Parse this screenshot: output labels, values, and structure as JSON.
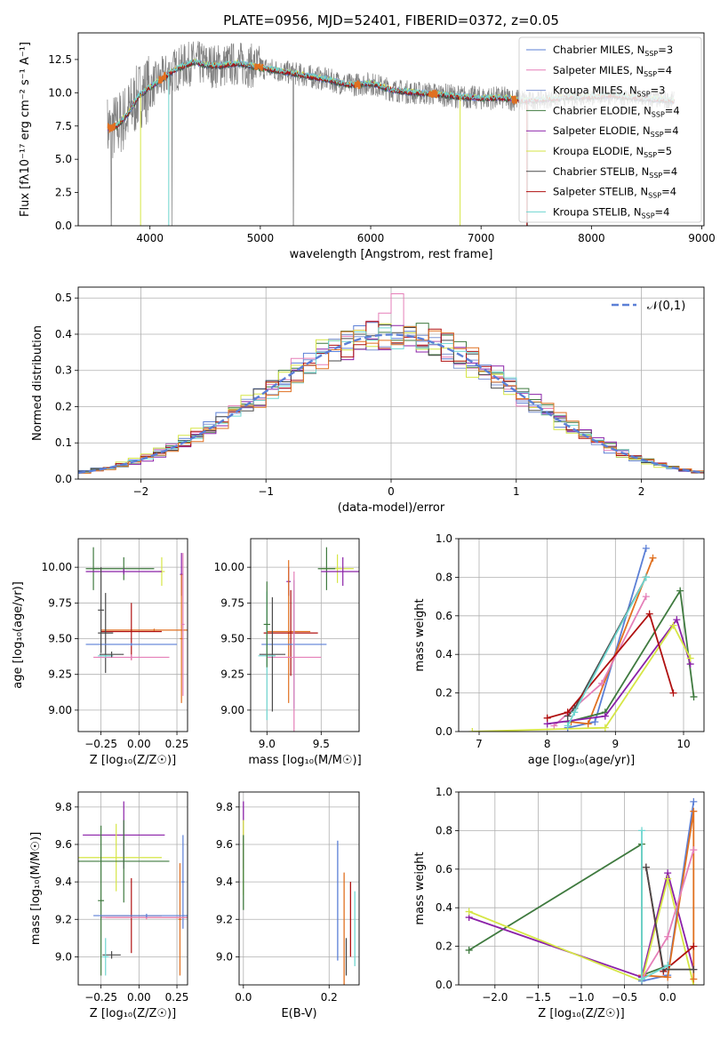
{
  "title": "PLATE=0956, MJD=52401, FIBERID=0372, z=0.05",
  "colors": {
    "chabrier_miles": "#5b7fd6",
    "salpeter_miles": "#e57fb8",
    "kroupa_miles": "#7f95d4",
    "chabrier_elodie": "#3f7a3f",
    "salpeter_elodie": "#8b21a8",
    "kroupa_elodie": "#d6e645",
    "chabrier_stelib": "#4a4a4a",
    "salpeter_stelib": "#b01010",
    "kroupa_stelib": "#6fd6d0",
    "data": "#808080",
    "orange": "#e07020",
    "normal": "#5b7fd6"
  },
  "chart_data": [
    {
      "id": "spectrum",
      "type": "line",
      "title": "PLATE=0956, MJD=52401, FIBERID=0372, z=0.05",
      "xlabel": "wavelength [Angstrom, rest frame]",
      "ylabel": "Flux [fλ10⁻¹⁷ erg cm⁻² s⁻¹ A⁻¹]",
      "xlim": [
        3350,
        9020
      ],
      "ylim": [
        0,
        14.5
      ],
      "xticks": [
        "4000",
        "5000",
        "6000",
        "7000",
        "8000",
        "9000"
      ],
      "yticks": [
        "0.0",
        "2.5",
        "5.0",
        "7.5",
        "10.0",
        "12.5"
      ],
      "legend_position": "top-right",
      "legend": [
        {
          "name": "Chabrier MILES, N",
          "sub": "SSP",
          "tail": "=3"
        },
        {
          "name": "Salpeter MILES, N",
          "sub": "SSP",
          "tail": "=4"
        },
        {
          "name": "Kroupa MILES, N",
          "sub": "SSP",
          "tail": "=3"
        },
        {
          "name": "Chabrier ELODIE, N",
          "sub": "SSP",
          "tail": "=4"
        },
        {
          "name": "Salpeter ELODIE, N",
          "sub": "SSP",
          "tail": "=4"
        },
        {
          "name": "Kroupa ELODIE, N",
          "sub": "SSP",
          "tail": "=5"
        },
        {
          "name": "Chabrier STELIB, N",
          "sub": "SSP",
          "tail": "=4"
        },
        {
          "name": "Salpeter STELIB, N",
          "sub": "SSP",
          "tail": "=4"
        },
        {
          "name": "Kroupa STELIB, N",
          "sub": "SSP",
          "tail": "=4"
        }
      ],
      "continuum_x": [
        3620,
        3700,
        3800,
        3900,
        4000,
        4100,
        4200,
        4300,
        4400,
        4500,
        4600,
        4800,
        5000,
        5200,
        5400,
        5600,
        5800,
        6000,
        6200,
        6400,
        6600,
        6800,
        7000,
        7200,
        7400,
        7600,
        7800,
        8000,
        8200,
        8400,
        8600,
        8750
      ],
      "continuum_y": [
        7.3,
        7.5,
        8.4,
        9.8,
        10.4,
        11.0,
        11.6,
        12.0,
        12.3,
        12.1,
        12.0,
        12.2,
        11.9,
        11.6,
        11.3,
        11.0,
        10.6,
        10.7,
        10.2,
        10.0,
        9.9,
        9.7,
        9.6,
        9.6,
        9.4,
        9.5,
        9.7,
        9.7,
        9.8,
        9.6,
        9.5,
        9.4
      ]
    },
    {
      "id": "residuals",
      "type": "line",
      "xlabel": "(data-model)/error",
      "ylabel": "Normed distribution",
      "xlim": [
        -2.5,
        2.5
      ],
      "ylim": [
        0,
        0.53
      ],
      "xticks": [
        "−2",
        "−1",
        "0",
        "1",
        "2"
      ],
      "yticks": [
        "0.0",
        "0.1",
        "0.2",
        "0.3",
        "0.4",
        "0.5"
      ],
      "grid": true,
      "legend_label": "𝒩(0,1)",
      "legend_position": "top-right"
    },
    {
      "id": "age_vs_Z",
      "type": "scatter",
      "xlabel": "Z [log₁₀(Z/Z☉)]",
      "ylabel": "age  [log₁₀(age/yr)]",
      "xlim": [
        -0.4,
        0.32
      ],
      "ylim": [
        8.85,
        10.2
      ],
      "xticks": [
        "−0.25",
        "0.00",
        "0.25"
      ],
      "yticks": [
        "9.00",
        "9.25",
        "9.50",
        "9.75",
        "10.00"
      ]
    },
    {
      "id": "age_vs_mass",
      "type": "scatter",
      "xlabel": "mass [log₁₀(M/M☉)]",
      "xlim": [
        8.85,
        9.85
      ],
      "ylim": [
        8.85,
        10.2
      ],
      "xticks": [
        "9.0",
        "9.5"
      ],
      "yticks": [
        "9.00",
        "9.25",
        "9.50",
        "9.75",
        "10.00"
      ]
    },
    {
      "id": "weight_vs_age",
      "type": "line",
      "xlabel": "age  [log₁₀(age/yr)]",
      "ylabel": "mass weight",
      "xlim": [
        6.7,
        10.3
      ],
      "ylim": [
        0,
        1.0
      ],
      "xticks": [
        "7",
        "8",
        "9",
        "10"
      ],
      "yticks": [
        "0.0",
        "0.2",
        "0.4",
        "0.6",
        "0.8",
        "1.0"
      ],
      "grid": true,
      "series": [
        {
          "color_key": "chabrier_miles",
          "x": [
            8.3,
            8.7,
            9.45
          ],
          "y": [
            0.02,
            0.05,
            0.95
          ]
        },
        {
          "color_key": "orange",
          "x": [
            8.35,
            8.6,
            9.55
          ],
          "y": [
            0.05,
            0.04,
            0.9
          ]
        },
        {
          "color_key": "salpeter_miles",
          "x": [
            8.1,
            8.8,
            9.45
          ],
          "y": [
            0.03,
            0.25,
            0.7
          ]
        },
        {
          "color_key": "chabrier_elodie",
          "x": [
            8.3,
            8.85,
            9.95,
            10.15
          ],
          "y": [
            0.05,
            0.1,
            0.73,
            0.18
          ]
        },
        {
          "color_key": "salpeter_elodie",
          "x": [
            8.0,
            8.85,
            9.9,
            10.1
          ],
          "y": [
            0.04,
            0.08,
            0.58,
            0.35
          ]
        },
        {
          "color_key": "kroupa_elodie",
          "x": [
            6.9,
            8.85,
            9.85,
            10.1
          ],
          "y": [
            0.0,
            0.02,
            0.55,
            0.38
          ]
        },
        {
          "color_key": "chabrier_stelib",
          "x": [
            8.3,
            8.4,
            9.45
          ],
          "y": [
            0.08,
            0.12,
            0.8
          ]
        },
        {
          "color_key": "salpeter_stelib",
          "x": [
            8.0,
            8.3,
            9.5,
            9.85
          ],
          "y": [
            0.07,
            0.1,
            0.61,
            0.2
          ]
        },
        {
          "color_key": "kroupa_stelib",
          "x": [
            8.3,
            8.4,
            9.45
          ],
          "y": [
            0.03,
            0.1,
            0.8
          ]
        }
      ]
    },
    {
      "id": "mass_vs_Z",
      "type": "scatter",
      "xlabel": "Z [log₁₀(Z/Z☉)]",
      "ylabel": "mass [log₁₀(M/M☉)]",
      "xlim": [
        -0.4,
        0.32
      ],
      "ylim": [
        8.85,
        9.88
      ],
      "xticks": [
        "−0.25",
        "0.00",
        "0.25"
      ],
      "yticks": [
        "9.0",
        "9.2",
        "9.4",
        "9.6",
        "9.8"
      ]
    },
    {
      "id": "mass_vs_ebv",
      "type": "scatter",
      "xlabel": "E(B-V)",
      "xlim": [
        -0.01,
        0.27
      ],
      "ylim": [
        8.85,
        9.88
      ],
      "xticks": [
        "0.0",
        "0.2"
      ],
      "yticks": [
        "9.0",
        "9.2",
        "9.4",
        "9.6",
        "9.8"
      ]
    },
    {
      "id": "weight_vs_Z",
      "type": "line",
      "xlabel": "Z [log₁₀(Z/Z☉)]",
      "ylabel": "mass weight",
      "xlim": [
        -2.42,
        0.42
      ],
      "ylim": [
        0,
        1.0
      ],
      "xticks": [
        "−2.0",
        "−1.5",
        "−1.0",
        "−0.5",
        "0.0"
      ],
      "yticks": [
        "0.0",
        "0.2",
        "0.4",
        "0.6",
        "0.8",
        "1.0"
      ],
      "grid": true,
      "series": [
        {
          "color_key": "chabrier_elodie",
          "x": [
            -2.3,
            -0.3,
            -0.3,
            0.0
          ],
          "y": [
            0.18,
            0.73,
            0.05,
            0.1
          ]
        },
        {
          "color_key": "salpeter_elodie",
          "x": [
            -2.3,
            -0.3,
            0.0,
            0.3
          ],
          "y": [
            0.35,
            0.04,
            0.58,
            0.08
          ]
        },
        {
          "color_key": "kroupa_elodie",
          "x": [
            -2.3,
            -0.3,
            0.0,
            0.3
          ],
          "y": [
            0.38,
            0.02,
            0.55,
            0.0
          ]
        },
        {
          "color_key": "chabrier_miles",
          "x": [
            -0.3,
            0.0,
            0.3
          ],
          "y": [
            0.02,
            0.05,
            0.95
          ]
        },
        {
          "color_key": "orange",
          "x": [
            -0.3,
            0.0,
            0.3,
            0.3
          ],
          "y": [
            0.05,
            0.04,
            0.9,
            0.03
          ]
        },
        {
          "color_key": "salpeter_miles",
          "x": [
            -0.3,
            0.0,
            0.3
          ],
          "y": [
            0.03,
            0.25,
            0.7
          ]
        },
        {
          "color_key": "salpeter_stelib",
          "x": [
            -0.25,
            -0.05,
            0.3
          ],
          "y": [
            0.61,
            0.07,
            0.2
          ]
        },
        {
          "color_key": "chabrier_stelib",
          "x": [
            -0.25,
            -0.05,
            0.3
          ],
          "y": [
            0.61,
            0.08,
            0.08
          ]
        },
        {
          "color_key": "kroupa_stelib",
          "x": [
            -0.3,
            -0.3,
            0.0
          ],
          "y": [
            0.8,
            0.03,
            0.1
          ]
        }
      ]
    }
  ]
}
